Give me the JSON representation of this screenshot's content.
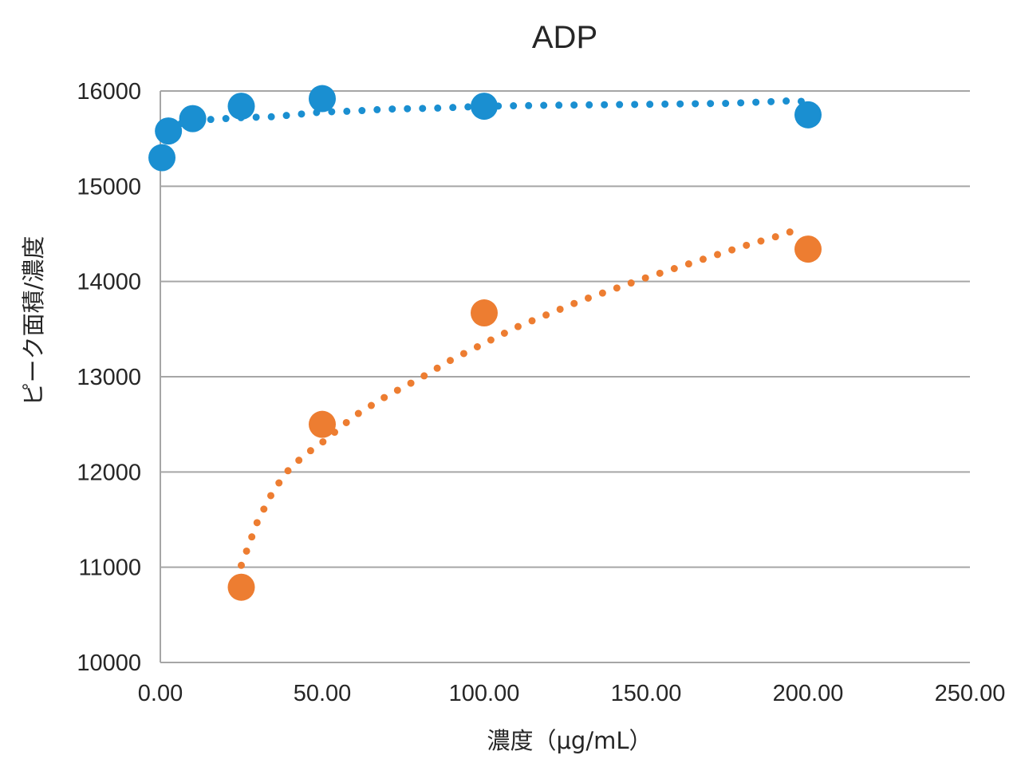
{
  "chart_data": {
    "type": "scatter",
    "title": "ADP",
    "xlabel": "濃度（μg/mL）",
    "ylabel": "ピーク面積/濃度",
    "xlim": [
      0,
      250
    ],
    "ylim": [
      10000,
      16000
    ],
    "x_ticks": [
      "0.00",
      "50.00",
      "100.00",
      "150.00",
      "200.00",
      "250.00"
    ],
    "y_ticks": [
      "10000",
      "11000",
      "12000",
      "13000",
      "14000",
      "15000",
      "16000"
    ],
    "grid": true,
    "legend": "none",
    "series": [
      {
        "color": "#1a8fd1",
        "marker": "circle",
        "trendline": "dotted",
        "points": [
          {
            "x": 0.5,
            "y": 15300
          },
          {
            "x": 2.5,
            "y": 15580
          },
          {
            "x": 10,
            "y": 15710
          },
          {
            "x": 25,
            "y": 15840
          },
          {
            "x": 50,
            "y": 15920
          },
          {
            "x": 100,
            "y": 15840
          },
          {
            "x": 200,
            "y": 15750
          }
        ],
        "trend": [
          {
            "x": 2,
            "y": 15600
          },
          {
            "x": 8,
            "y": 15680
          },
          {
            "x": 15,
            "y": 15700
          },
          {
            "x": 25,
            "y": 15720
          },
          {
            "x": 35,
            "y": 15730
          },
          {
            "x": 50,
            "y": 15780
          },
          {
            "x": 60,
            "y": 15790
          },
          {
            "x": 70,
            "y": 15810
          },
          {
            "x": 85,
            "y": 15820
          },
          {
            "x": 100,
            "y": 15840
          },
          {
            "x": 120,
            "y": 15850
          },
          {
            "x": 150,
            "y": 15860
          },
          {
            "x": 175,
            "y": 15870
          },
          {
            "x": 190,
            "y": 15890
          },
          {
            "x": 197,
            "y": 15900
          },
          {
            "x": 200,
            "y": 15870
          }
        ]
      },
      {
        "color": "#ed7d31",
        "marker": "circle",
        "trendline": "dotted",
        "points": [
          {
            "x": 25,
            "y": 10790
          },
          {
            "x": 50,
            "y": 12500
          },
          {
            "x": 100,
            "y": 13670
          },
          {
            "x": 200,
            "y": 14340
          }
        ],
        "trend": [
          {
            "x": 25,
            "y": 11020
          },
          {
            "x": 30,
            "y": 11480
          },
          {
            "x": 35,
            "y": 11810
          },
          {
            "x": 40,
            "y": 12040
          },
          {
            "x": 45,
            "y": 12190
          },
          {
            "x": 50,
            "y": 12310
          },
          {
            "x": 60,
            "y": 12590
          },
          {
            "x": 70,
            "y": 12800
          },
          {
            "x": 80,
            "y": 12980
          },
          {
            "x": 90,
            "y": 13180
          },
          {
            "x": 100,
            "y": 13350
          },
          {
            "x": 110,
            "y": 13520
          },
          {
            "x": 120,
            "y": 13660
          },
          {
            "x": 130,
            "y": 13800
          },
          {
            "x": 140,
            "y": 13920
          },
          {
            "x": 150,
            "y": 14040
          },
          {
            "x": 160,
            "y": 14150
          },
          {
            "x": 170,
            "y": 14260
          },
          {
            "x": 180,
            "y": 14370
          },
          {
            "x": 190,
            "y": 14470
          },
          {
            "x": 198,
            "y": 14560
          }
        ]
      }
    ]
  }
}
